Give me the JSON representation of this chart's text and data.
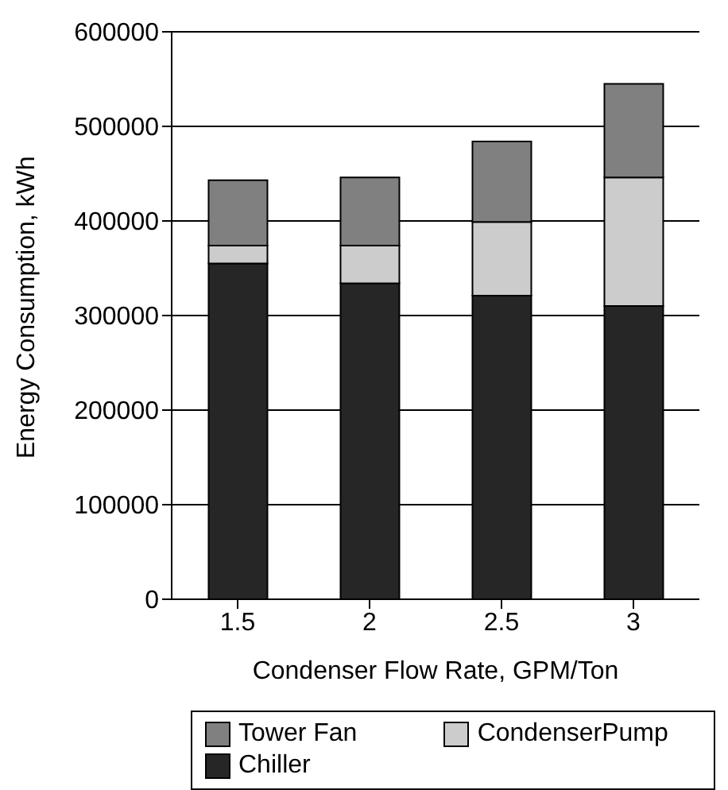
{
  "chart_data": {
    "type": "bar",
    "stacked": true,
    "categories": [
      "1.5",
      "2",
      "2.5",
      "3"
    ],
    "series": [
      {
        "name": "Chiller",
        "color": "#262626",
        "values": [
          355000,
          334000,
          321000,
          310000
        ]
      },
      {
        "name": "CondenserPump",
        "color": "#cccccc",
        "values": [
          19000,
          40000,
          78000,
          136000
        ]
      },
      {
        "name": "Tower Fan",
        "color": "#808080",
        "values": [
          69000,
          72000,
          85000,
          99000
        ]
      }
    ],
    "xlabel": "Condenser Flow Rate, GPM/Ton",
    "ylabel": "Energy Consumption, kWh",
    "ylim": [
      0,
      600000
    ],
    "yticks": [
      0,
      100000,
      200000,
      300000,
      400000,
      500000,
      600000
    ],
    "grid": "y",
    "legend": "bottom"
  }
}
